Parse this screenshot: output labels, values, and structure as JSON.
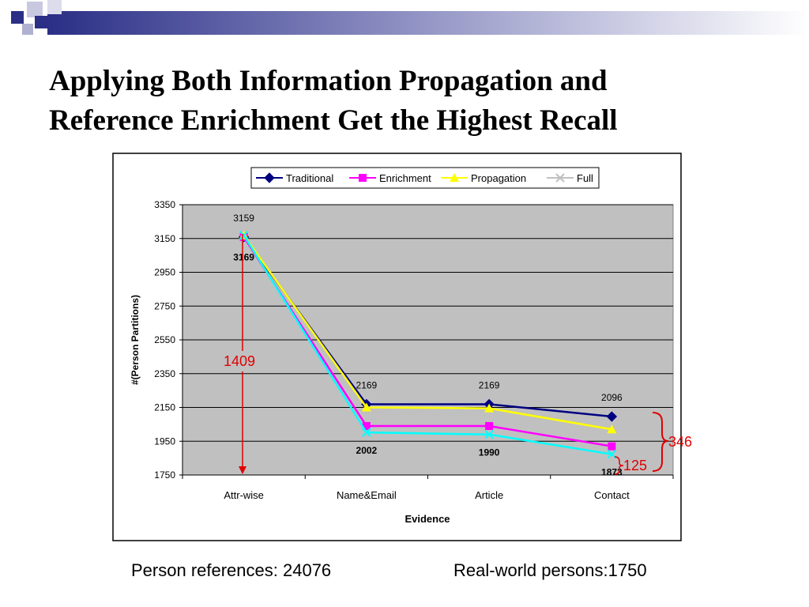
{
  "slide": {
    "title_line1": "Applying Both Information Propagation and",
    "title_line2": "Reference Enrichment Get the Highest Recall"
  },
  "footer": {
    "person_references": "Person references: 24076",
    "real_world_persons": "Real-world persons:1750"
  },
  "colors": {
    "band_dark": "#2b2f86",
    "plot_bg": "#c0c0c0",
    "annotation": "#e00000"
  },
  "chart_data": {
    "type": "line",
    "title": "",
    "xlabel": "Evidence",
    "ylabel": "#(Person Partitions)",
    "categories": [
      "Attr-wise",
      "Name&Email",
      "Article",
      "Contact"
    ],
    "ylim": [
      1750,
      3350
    ],
    "yticks": [
      1750,
      1950,
      2150,
      2350,
      2550,
      2750,
      2950,
      3150,
      3350
    ],
    "grid": true,
    "legend_position": "top",
    "series": [
      {
        "name": "Traditional",
        "values": [
          3159,
          2169,
          2169,
          2096
        ],
        "color": "#000080",
        "marker": "diamond",
        "labels": [
          "3159",
          "2169",
          "2169",
          "2096"
        ]
      },
      {
        "name": "Enrichment",
        "values": [
          3159,
          2040,
          2040,
          1920
        ],
        "color": "#ff00ff",
        "marker": "square"
      },
      {
        "name": "Propagation",
        "values": [
          3169,
          2150,
          2145,
          2020
        ],
        "color": "#ffff00",
        "marker": "triangle"
      },
      {
        "name": "Full",
        "values": [
          3169,
          2002,
          1990,
          1873
        ],
        "color": "#00ffff",
        "marker": "x",
        "labels": [
          "3169",
          "2002",
          "1990",
          "1873"
        ]
      }
    ],
    "annotations": {
      "drop_label": "1409",
      "gap_total_label": "346",
      "gap_small_label": "125"
    }
  }
}
